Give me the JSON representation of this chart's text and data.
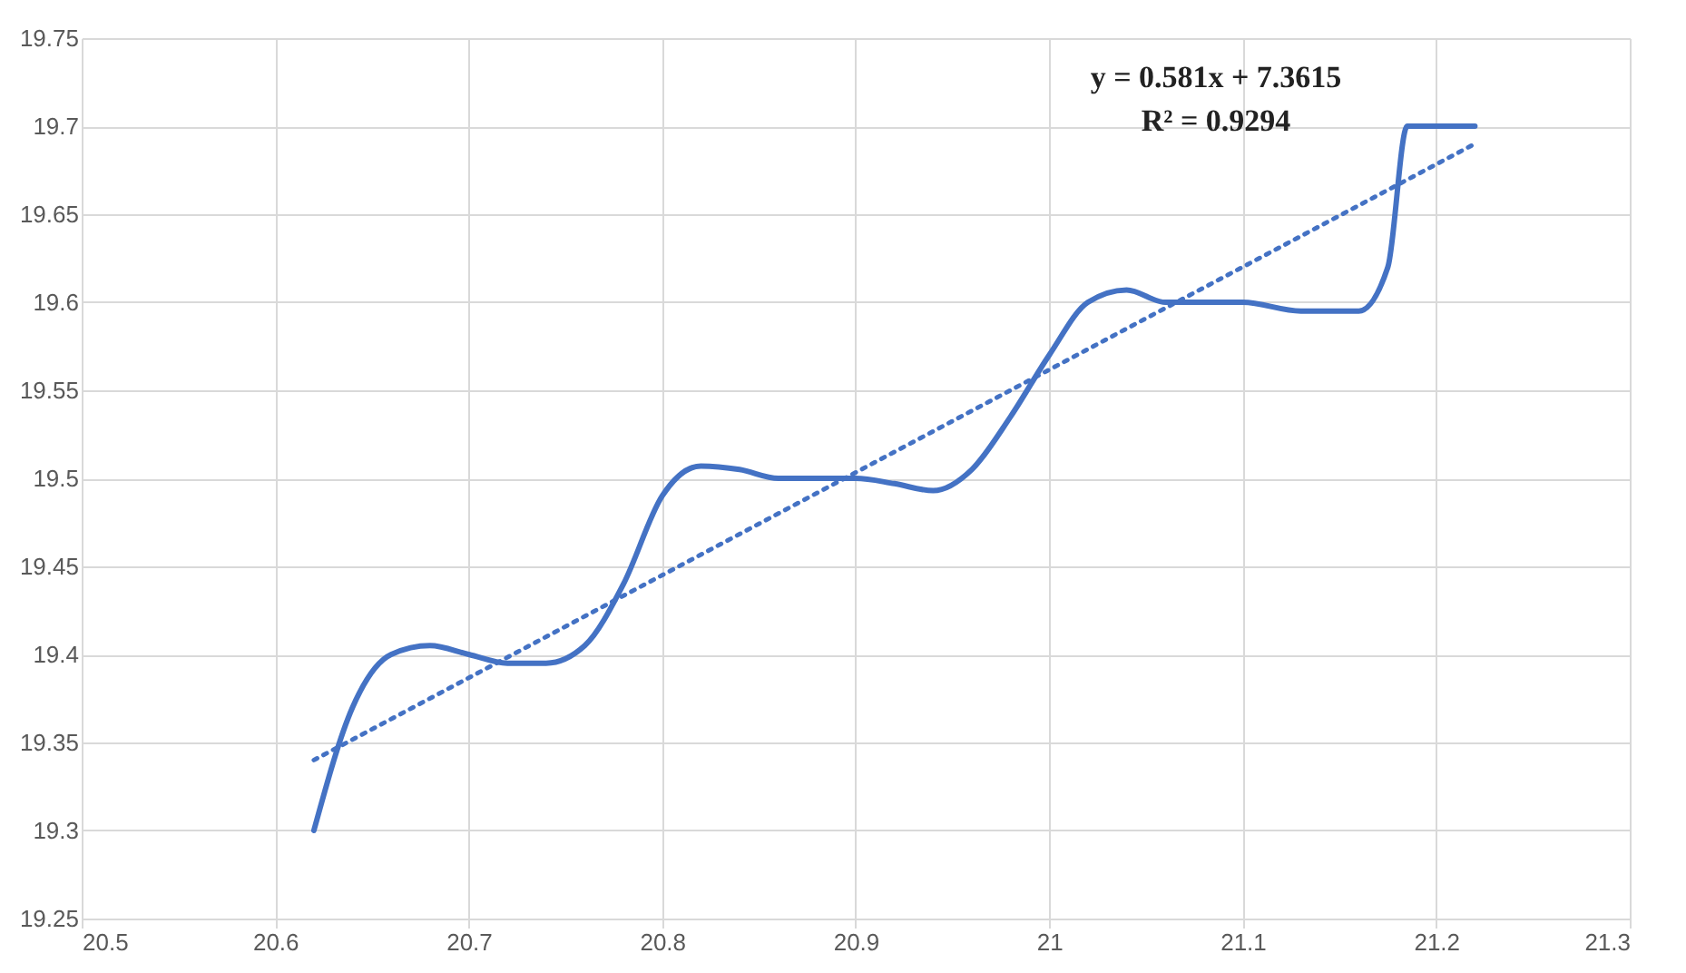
{
  "chart_data": {
    "type": "line",
    "xlim": [
      20.5,
      21.3
    ],
    "xticks": [
      20.5,
      20.6,
      20.7,
      20.8,
      20.9,
      21,
      21.1,
      21.2,
      21.3
    ],
    "ylim": [
      19.25,
      19.75
    ],
    "yticks": [
      19.25,
      19.3,
      19.35,
      19.4,
      19.45,
      19.5,
      19.55,
      19.6,
      19.65,
      19.7,
      19.75
    ],
    "grid": true,
    "series": [
      {
        "color": "#4472c4",
        "line_style": "solid",
        "x": [
          20.62,
          20.64,
          20.66,
          20.68,
          20.7,
          20.72,
          20.74,
          20.76,
          20.78,
          20.8,
          20.82,
          20.84,
          20.86,
          20.9,
          20.92,
          20.94,
          20.96,
          20.98,
          21.0,
          21.02,
          21.04,
          21.06,
          21.1,
          21.13,
          21.16,
          21.175,
          21.185,
          21.2,
          21.22
        ],
        "values": [
          19.3,
          19.37,
          19.4,
          19.405,
          19.4,
          19.395,
          19.395,
          19.405,
          19.44,
          19.49,
          19.507,
          19.505,
          19.5,
          19.5,
          19.497,
          19.493,
          19.505,
          19.535,
          19.57,
          19.6,
          19.607,
          19.6,
          19.6,
          19.595,
          19.595,
          19.62,
          19.7,
          19.7,
          19.7
        ]
      },
      {
        "type": "line",
        "color": "#4472c4",
        "line_style": "dotted",
        "x": [
          20.62,
          21.22
        ],
        "values": [
          19.34,
          19.69
        ]
      }
    ],
    "annotations": [
      "y = 0.581x + 7.3615",
      "R² = 0.9294"
    ]
  }
}
